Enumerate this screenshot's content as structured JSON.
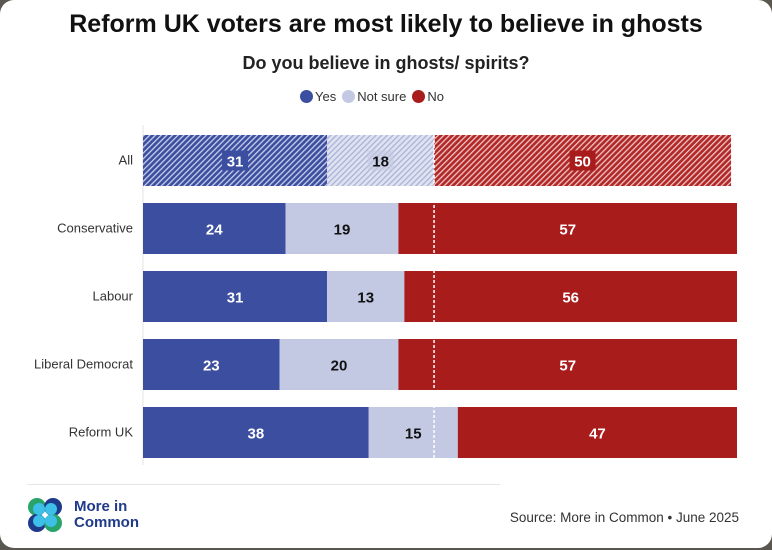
{
  "title": "Reform UK voters are most likely to believe in ghosts",
  "colors": {
    "yes": "#3b4ea0",
    "not_sure": "#c3c9e3",
    "no": "#a81c1c"
  },
  "chart_data": {
    "type": "bar",
    "orientation": "horizontal",
    "stacked": true,
    "title": "Do you believe in ghosts/ spirits?",
    "categories": [
      "All",
      "Conservative",
      "Labour",
      "Liberal Democrat",
      "Reform UK"
    ],
    "series": [
      {
        "name": "Yes",
        "values": [
          31,
          24,
          31,
          23,
          38
        ]
      },
      {
        "name": "Not sure",
        "values": [
          18,
          19,
          13,
          20,
          15
        ]
      },
      {
        "name": "No",
        "values": [
          50,
          57,
          56,
          57,
          47
        ]
      }
    ],
    "xlim": [
      0,
      100
    ],
    "hatched_categories": [
      "All"
    ],
    "reference_line": "All: Yes + Not sure",
    "legend": "top"
  },
  "legend": [
    "Yes",
    "Not sure",
    "No"
  ],
  "footer": {
    "logo_text_1": "More in",
    "logo_text_2": "Common",
    "source": "Source: More in Common • June 2025"
  }
}
